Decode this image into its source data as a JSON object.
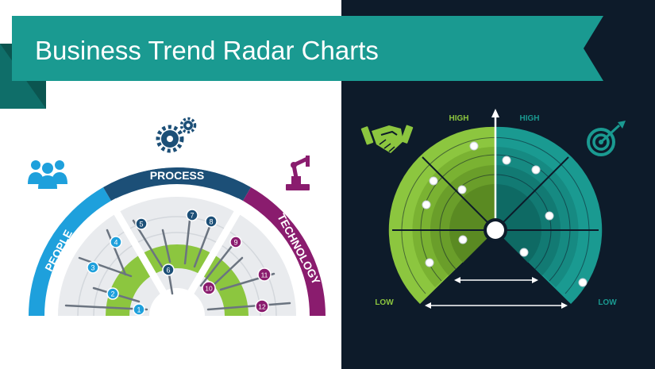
{
  "title": "Business Trend Radar Charts",
  "colors": {
    "banner": "#1a9a91",
    "banner_dark": "#0f6e69",
    "dark_bg": "#0d1b2a",
    "people": "#1ea0dc",
    "process": "#1c4f77",
    "technology": "#8a1c6e",
    "lime": "#8cc63f",
    "teal": "#1a9a91",
    "light_gray": "#e9ebee"
  },
  "left_chart": {
    "segments": [
      {
        "label": "PEOPLE",
        "icon": "people-icon"
      },
      {
        "label": "PROCESS",
        "icon": "gears-icon"
      },
      {
        "label": "TECHNOLOGY",
        "icon": "robot-arm-icon"
      }
    ],
    "markers": [
      "1",
      "2",
      "3",
      "4",
      "5",
      "6",
      "7",
      "8",
      "9",
      "10",
      "11",
      "12"
    ]
  },
  "right_chart": {
    "labels": {
      "high_left": "HIGH",
      "high_right": "HIGH",
      "low_left": "LOW",
      "low_right": "LOW"
    },
    "icons": [
      "handshake-icon",
      "target-icon"
    ]
  }
}
